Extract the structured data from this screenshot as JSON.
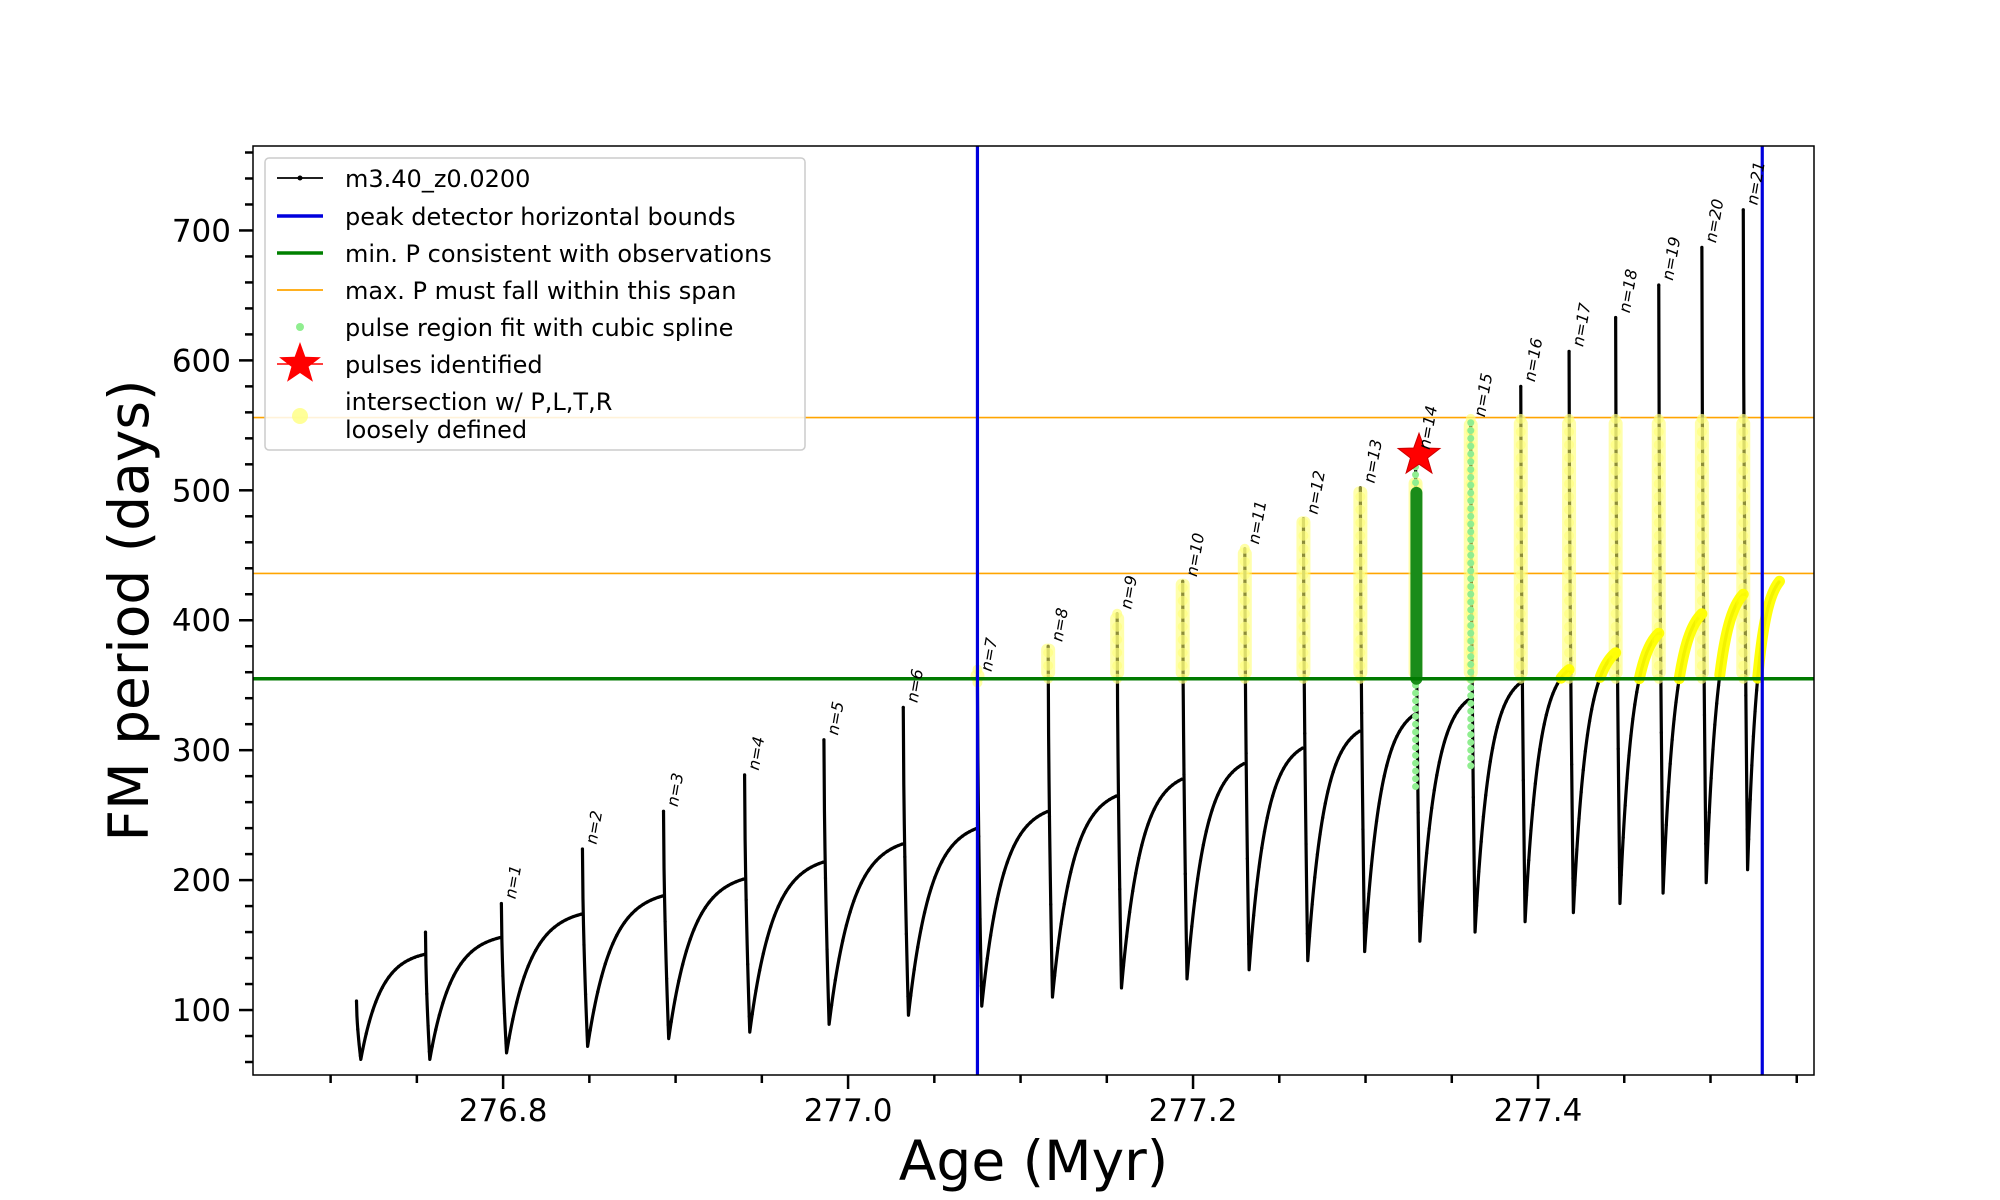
{
  "chart_data": {
    "type": "line",
    "title": "",
    "xlabel": "Age (Myr)",
    "ylabel": "FM period (days)",
    "xlim": [
      276.655,
      277.56
    ],
    "ylim": [
      50,
      765
    ],
    "x_ticks": [
      276.8,
      277.0,
      277.2,
      277.4
    ],
    "y_ticks": [
      100,
      200,
      300,
      400,
      500,
      600,
      700
    ],
    "x_tick_labels": [
      "276.8",
      "277.0",
      "277.2",
      "277.4"
    ],
    "y_tick_labels": [
      "100",
      "200",
      "300",
      "400",
      "500",
      "600",
      "700"
    ],
    "legend": {
      "position": "top-left",
      "entries": [
        {
          "label": "m3.40_z0.0200",
          "style": "line-dot",
          "color": "#000000"
        },
        {
          "label": "peak detector horizontal bounds",
          "style": "line",
          "color": "#0000dd"
        },
        {
          "label": "min. P consistent with observations",
          "style": "line",
          "color": "#008000"
        },
        {
          "label": "max. P must fall within this span",
          "style": "thin-line",
          "color": "#ffa500"
        },
        {
          "label": "pulse region fit with cubic spline",
          "style": "dot",
          "color": "#90ee90"
        },
        {
          "label": "pulses identified",
          "style": "star",
          "color": "#ff0000"
        },
        {
          "label": "intersection w/ P,L,T,R\nloosely defined",
          "style": "circle",
          "color": "#ffff80"
        }
      ]
    },
    "reference_lines": {
      "vertical_peak_bounds": [
        277.075,
        277.53
      ],
      "horizontal_min_P": 355,
      "horizontal_max_P_span": [
        436,
        556
      ]
    },
    "series": [
      {
        "name": "m3.40_z0.0200",
        "color": "#000000",
        "cycles": [
          {
            "start": 276.715,
            "end": 276.755,
            "min_x": 276.7175,
            "min": 62,
            "end_y": 143,
            "spike_top": 107,
            "n": null
          },
          {
            "start": 276.755,
            "end": 276.799,
            "min_x": 276.7575,
            "min": 62,
            "end_y": 156,
            "spike_top": 160,
            "n": null
          },
          {
            "start": 276.799,
            "end": 276.846,
            "min_x": 276.802,
            "min": 67,
            "end_y": 174,
            "spike_top": 182,
            "n": "n=1"
          },
          {
            "start": 276.846,
            "end": 276.893,
            "min_x": 276.849,
            "min": 72,
            "end_y": 188,
            "spike_top": 224,
            "n": "n=2"
          },
          {
            "start": 276.893,
            "end": 276.94,
            "min_x": 276.896,
            "min": 78,
            "end_y": 201,
            "spike_top": 253,
            "n": "n=3"
          },
          {
            "start": 276.94,
            "end": 276.986,
            "min_x": 276.943,
            "min": 83,
            "end_y": 214,
            "spike_top": 281,
            "n": "n=4"
          },
          {
            "start": 276.986,
            "end": 277.032,
            "min_x": 276.989,
            "min": 89,
            "end_y": 228,
            "spike_top": 308,
            "n": "n=5"
          },
          {
            "start": 277.032,
            "end": 277.075,
            "min_x": 277.035,
            "min": 96,
            "end_y": 240,
            "spike_top": 333,
            "n": "n=6"
          },
          {
            "start": 277.075,
            "end": 277.116,
            "min_x": 277.0775,
            "min": 103,
            "end_y": 253,
            "spike_top": 357,
            "n": "n=7"
          },
          {
            "start": 277.116,
            "end": 277.156,
            "min_x": 277.1185,
            "min": 110,
            "end_y": 265,
            "spike_top": 380,
            "n": "n=8"
          },
          {
            "start": 277.156,
            "end": 277.194,
            "min_x": 277.1585,
            "min": 117,
            "end_y": 278,
            "spike_top": 405,
            "n": "n=9"
          },
          {
            "start": 277.194,
            "end": 277.23,
            "min_x": 277.1965,
            "min": 124,
            "end_y": 290,
            "spike_top": 430,
            "n": "n=10"
          },
          {
            "start": 277.23,
            "end": 277.264,
            "min_x": 277.2325,
            "min": 131,
            "end_y": 302,
            "spike_top": 455,
            "n": "n=11"
          },
          {
            "start": 277.264,
            "end": 277.297,
            "min_x": 277.2665,
            "min": 138,
            "end_y": 315,
            "spike_top": 478,
            "n": "n=12"
          },
          {
            "start": 277.297,
            "end": 277.329,
            "min_x": 277.2995,
            "min": 145,
            "end_y": 328,
            "spike_top": 502,
            "n": "n=13"
          },
          {
            "start": 277.329,
            "end": 277.361,
            "min_x": 277.3315,
            "min": 153,
            "end_y": 340,
            "spike_top": 528,
            "n": "n=14"
          },
          {
            "start": 277.361,
            "end": 277.39,
            "min_x": 277.3635,
            "min": 160,
            "end_y": 352,
            "spike_top": 553,
            "n": "n=15"
          },
          {
            "start": 277.39,
            "end": 277.418,
            "min_x": 277.3925,
            "min": 168,
            "end_y": 362,
            "spike_top": 580,
            "n": "n=16"
          },
          {
            "start": 277.418,
            "end": 277.445,
            "min_x": 277.4205,
            "min": 175,
            "end_y": 375,
            "spike_top": 607,
            "n": "n=17"
          },
          {
            "start": 277.445,
            "end": 277.47,
            "min_x": 277.4475,
            "min": 182,
            "end_y": 390,
            "spike_top": 633,
            "n": "n=18"
          },
          {
            "start": 277.47,
            "end": 277.495,
            "min_x": 277.4725,
            "min": 190,
            "end_y": 405,
            "spike_top": 658,
            "n": "n=19"
          },
          {
            "start": 277.495,
            "end": 277.519,
            "min_x": 277.4975,
            "min": 198,
            "end_y": 420,
            "spike_top": 687,
            "n": "n=20"
          },
          {
            "start": 277.519,
            "end": 277.54,
            "min_x": 277.5215,
            "min": 208,
            "end_y": 430,
            "spike_top": 716,
            "n": "n=21"
          }
        ]
      },
      {
        "name": "pulse region fit with cubic spline",
        "color": "#90ee90",
        "segments": [
          {
            "x": 277.329,
            "y_range": [
              272,
              520
            ]
          },
          {
            "x": 277.361,
            "y_range": [
              288,
              555
            ]
          }
        ]
      },
      {
        "name": "pulses identified",
        "color": "#ff0000",
        "points": [
          {
            "x": 277.331,
            "y": 527
          }
        ]
      }
    ],
    "highlight_thick_green": {
      "x": 277.3295,
      "y_range": [
        355,
        498
      ]
    },
    "yellow_bands": [
      {
        "x": 277.075,
        "y_range": [
          352,
          362
        ]
      },
      {
        "x": 277.116,
        "y_range": [
          355,
          382
        ]
      },
      {
        "x": 277.156,
        "y_range": [
          355,
          406
        ]
      },
      {
        "x": 277.194,
        "y_range": [
          355,
          432
        ]
      },
      {
        "x": 277.23,
        "y_range": [
          355,
          456
        ]
      },
      {
        "x": 277.264,
        "y_range": [
          355,
          480
        ]
      },
      {
        "x": 277.297,
        "y_range": [
          355,
          503
        ]
      },
      {
        "x": 277.329,
        "y_range": [
          355,
          510
        ]
      },
      {
        "x": 277.361,
        "y_range": [
          355,
          555
        ]
      },
      {
        "x": 277.39,
        "y_range": [
          355,
          556
        ]
      },
      {
        "x": 277.418,
        "y_range": [
          355,
          556
        ]
      },
      {
        "x": 277.445,
        "y_range": [
          355,
          556
        ]
      },
      {
        "x": 277.47,
        "y_range": [
          355,
          556
        ]
      },
      {
        "x": 277.495,
        "y_range": [
          355,
          556
        ]
      },
      {
        "x": 277.519,
        "y_range": [
          355,
          556
        ]
      }
    ]
  }
}
